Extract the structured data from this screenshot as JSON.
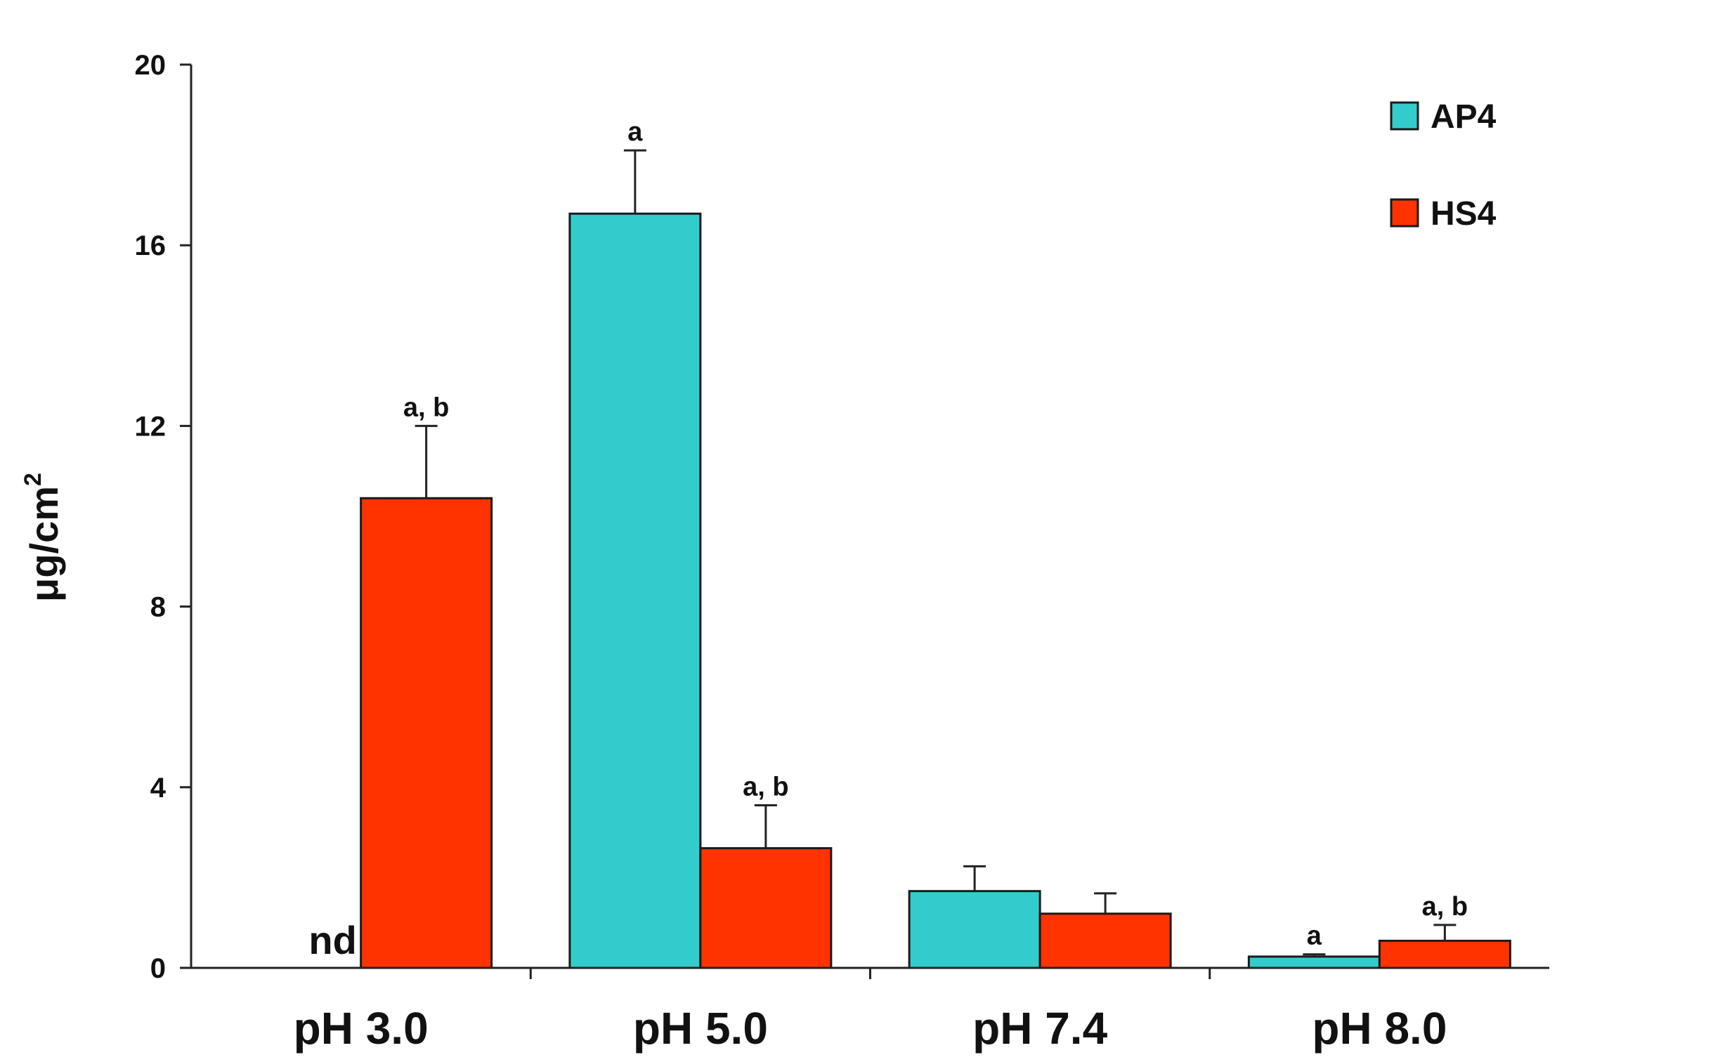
{
  "chart_data": {
    "type": "bar",
    "ylabel": "μg/cm",
    "ylabel_superscript": "2",
    "ylim": [
      0,
      20
    ],
    "yticks": [
      "0",
      "4",
      "8",
      "12",
      "16",
      "20"
    ],
    "categories": [
      "pH 3.0",
      "pH 5.0",
      "pH 7.4",
      "pH 8.0"
    ],
    "series": [
      {
        "name": "AP4",
        "color": "#33CCCC",
        "values": [
          null,
          16.7,
          1.7,
          0.25
        ],
        "errors": [
          null,
          1.4,
          0.55,
          0.05
        ],
        "annotations": [
          "nd",
          "a",
          "",
          "a"
        ]
      },
      {
        "name": "HS4",
        "color": "#FF3300",
        "values": [
          10.4,
          2.65,
          1.2,
          0.6
        ],
        "errors": [
          1.6,
          0.95,
          0.45,
          0.35
        ],
        "annotations": [
          "a, b",
          "a, b",
          "",
          "a, b"
        ]
      }
    ],
    "legend_position": "top-right",
    "grid": false
  }
}
